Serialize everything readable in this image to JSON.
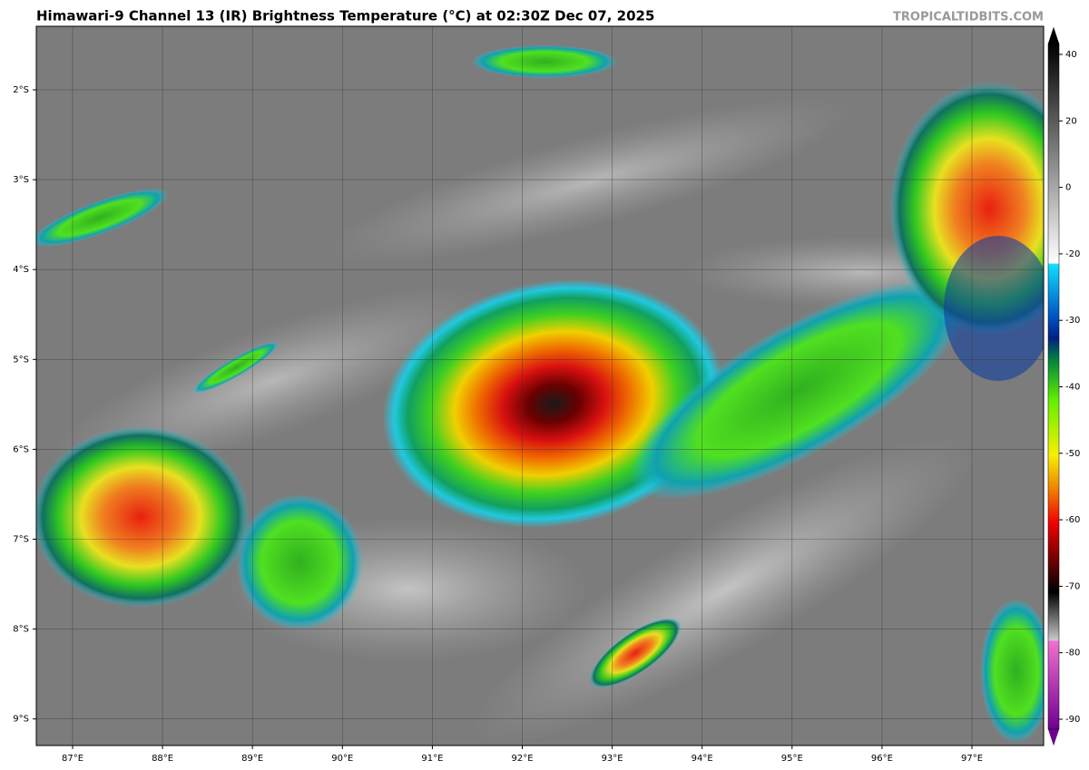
{
  "header": {
    "title": "Himawari-9 Channel 13 (IR) Brightness Temperature (°C) at 02:30Z Dec 07, 2025",
    "credit": "TROPICALTIDBITS.COM"
  },
  "map": {
    "lat_labels": [
      "2°S",
      "3°S",
      "4°S",
      "5°S",
      "6°S",
      "7°S",
      "8°S",
      "9°S"
    ],
    "lon_labels": [
      "87°E",
      "88°E",
      "89°E",
      "90°E",
      "91°E",
      "92°E",
      "93°E",
      "94°E",
      "95°E",
      "96°E",
      "97°E"
    ]
  },
  "colorbar": {
    "ticks": [
      40,
      20,
      0,
      -20,
      -30,
      -40,
      -50,
      -60,
      -70,
      -80,
      -90
    ]
  }
}
